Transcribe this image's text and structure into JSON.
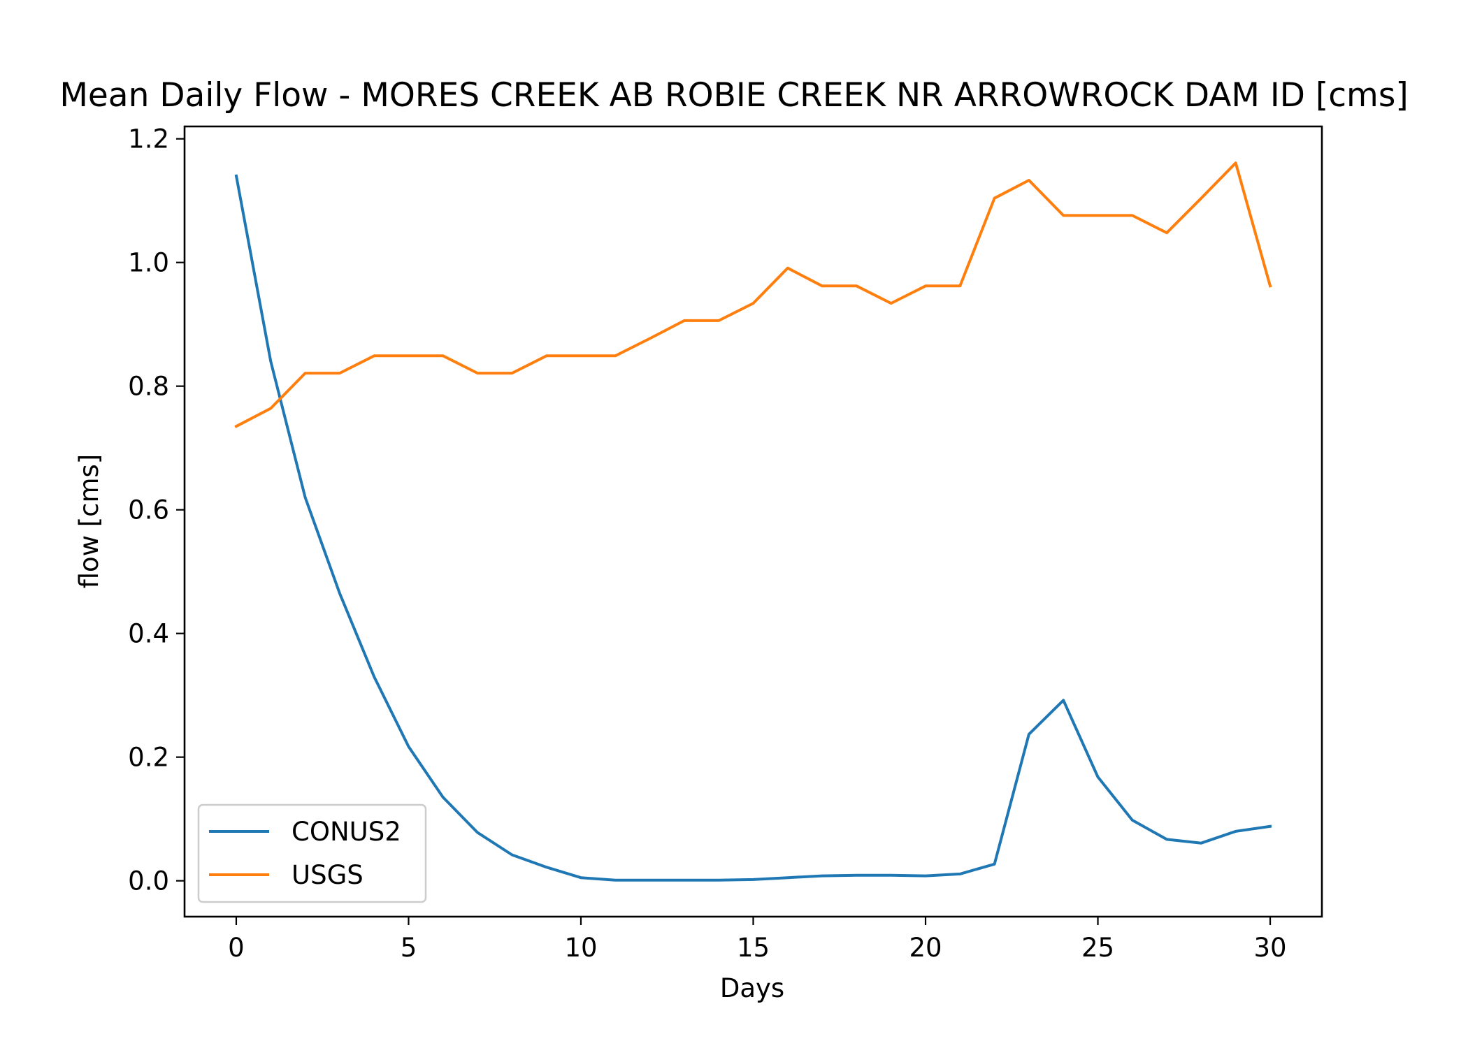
{
  "chart_data": {
    "type": "line",
    "title": "Mean Daily Flow - MORES CREEK AB ROBIE CREEK NR ARROWROCK DAM ID [cms]",
    "xlabel": "Days",
    "ylabel": "flow [cms]",
    "xlim": [
      -1.5,
      31.5
    ],
    "ylim": [
      -0.058,
      1.22
    ],
    "xticks": [
      0,
      5,
      10,
      15,
      20,
      25,
      30
    ],
    "xtick_labels": [
      "0",
      "5",
      "10",
      "15",
      "20",
      "25",
      "30"
    ],
    "yticks": [
      0.0,
      0.2,
      0.4,
      0.6,
      0.8,
      1.0,
      1.2
    ],
    "ytick_labels": [
      "0.0",
      "0.2",
      "0.4",
      "0.6",
      "0.8",
      "1.0",
      "1.2"
    ],
    "grid": false,
    "legend_position": "lower-left",
    "x": [
      0,
      1,
      2,
      3,
      4,
      5,
      6,
      7,
      8,
      9,
      10,
      11,
      12,
      13,
      14,
      15,
      16,
      17,
      18,
      19,
      20,
      21,
      22,
      23,
      24,
      25,
      26,
      27,
      28,
      29,
      30
    ],
    "series": [
      {
        "name": "CONUS2",
        "color": "#1f77b4",
        "values": [
          1.14,
          0.84,
          0.62,
          0.465,
          0.33,
          0.217,
          0.135,
          0.078,
          0.042,
          0.022,
          0.005,
          0.001,
          0.001,
          0.001,
          0.001,
          0.002,
          0.005,
          0.008,
          0.009,
          0.009,
          0.008,
          0.011,
          0.027,
          0.237,
          0.292,
          0.168,
          0.098,
          0.067,
          0.061,
          0.08,
          0.088
        ]
      },
      {
        "name": "USGS",
        "color": "#ff7f0e",
        "values": [
          0.735,
          0.764,
          0.821,
          0.821,
          0.849,
          0.849,
          0.849,
          0.821,
          0.821,
          0.849,
          0.849,
          0.849,
          0.877,
          0.906,
          0.906,
          0.934,
          0.991,
          0.962,
          0.962,
          0.934,
          0.962,
          0.962,
          1.104,
          1.133,
          1.076,
          1.076,
          1.076,
          1.048,
          1.104,
          1.161,
          0.962
        ]
      }
    ]
  }
}
